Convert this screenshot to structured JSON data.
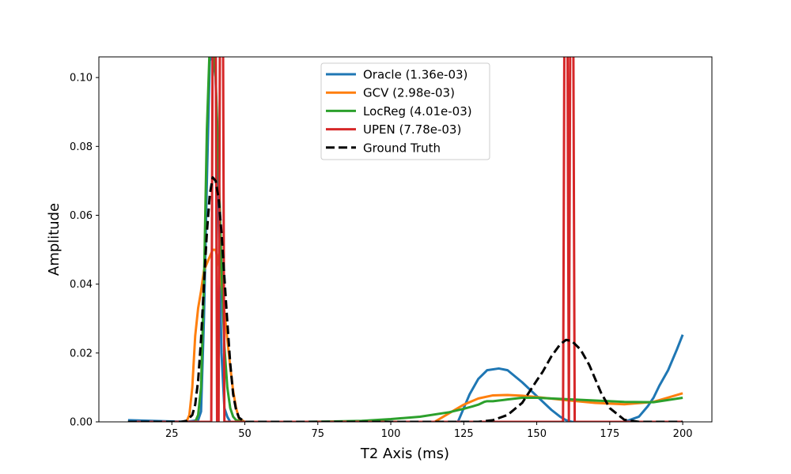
{
  "chart_data": {
    "type": "line",
    "title": "",
    "xlabel": "T2 Axis (ms)",
    "ylabel": "Amplitude",
    "xlim": [
      0,
      210
    ],
    "ylim": [
      0,
      0.106
    ],
    "x_ticks": [
      25,
      50,
      75,
      100,
      125,
      150,
      175,
      200
    ],
    "x_tick_labels": [
      "25",
      "50",
      "75",
      "100",
      "125",
      "150",
      "175",
      "200"
    ],
    "y_ticks": [
      0.0,
      0.02,
      0.04,
      0.06,
      0.08,
      0.1
    ],
    "y_tick_labels": [
      "0.00",
      "0.02",
      "0.04",
      "0.06",
      "0.08",
      "0.10"
    ],
    "grid": false,
    "legend_position": "top-center",
    "series": [
      {
        "name": "Oracle (1.36e-03)",
        "color": "#1f77b4",
        "dashed": false,
        "x": [
          10,
          30,
          34,
          35,
          36,
          37,
          38,
          39,
          40,
          41,
          42,
          43,
          44,
          45,
          50,
          120,
          123,
          125,
          127,
          130,
          133,
          137,
          140,
          145,
          150,
          155,
          158,
          160,
          162,
          165,
          180,
          185,
          188,
          190,
          192,
          195,
          198,
          200
        ],
        "y": [
          0.0005,
          0.0,
          0.0005,
          0.003,
          0.03,
          0.07,
          0.105,
          0.106,
          0.1,
          0.06,
          0.02,
          0.004,
          0.0015,
          0.0,
          0.0,
          0.0,
          0.0,
          0.004,
          0.008,
          0.0125,
          0.015,
          0.0155,
          0.015,
          0.0115,
          0.0075,
          0.0035,
          0.0015,
          0.0005,
          0.0,
          0.0,
          0.0,
          0.0015,
          0.0045,
          0.007,
          0.0105,
          0.015,
          0.021,
          0.0253
        ]
      },
      {
        "name": "GCV (2.98e-03)",
        "color": "#ff7f0e",
        "dashed": false,
        "x": [
          10,
          30,
          31,
          32,
          33,
          34,
          35,
          36,
          37,
          38,
          39,
          40,
          41,
          42,
          43,
          44,
          45,
          46,
          47,
          48,
          50,
          115,
          120,
          125,
          130,
          135,
          140,
          145,
          150,
          160,
          170,
          180,
          190,
          200
        ],
        "y": [
          0.0,
          0.0,
          0.002,
          0.01,
          0.025,
          0.033,
          0.038,
          0.044,
          0.046,
          0.048,
          0.05,
          0.05,
          0.046,
          0.04,
          0.032,
          0.024,
          0.016,
          0.009,
          0.004,
          0.001,
          0.0,
          0.0,
          0.0025,
          0.005,
          0.0068,
          0.0077,
          0.0078,
          0.0076,
          0.0072,
          0.0063,
          0.0055,
          0.0051,
          0.0058,
          0.0083
        ]
      },
      {
        "name": "LocReg (4.01e-03)",
        "color": "#2ca02c",
        "dashed": false,
        "x": [
          10,
          33,
          34,
          35,
          36,
          37,
          38,
          39,
          40,
          41,
          42,
          43,
          44,
          45,
          46,
          47,
          50,
          60,
          70,
          80,
          90,
          100,
          110,
          120,
          125,
          128,
          130,
          132,
          133,
          135,
          140,
          145,
          150,
          160,
          170,
          180,
          190,
          200
        ],
        "y": [
          0.0,
          0.0,
          0.002,
          0.01,
          0.04,
          0.085,
          0.11,
          0.11,
          0.1,
          0.075,
          0.045,
          0.022,
          0.01,
          0.004,
          0.0015,
          0.0005,
          0.0,
          0.0,
          0.0,
          0.0001,
          0.0003,
          0.0008,
          0.0015,
          0.0028,
          0.0038,
          0.0045,
          0.005,
          0.0058,
          0.006,
          0.006,
          0.0065,
          0.007,
          0.007,
          0.0066,
          0.0062,
          0.0058,
          0.0057,
          0.007
        ]
      },
      {
        "name": "UPEN (7.78e-03)",
        "color": "#d62728",
        "dashed": false,
        "x": [
          10,
          38.5,
          39,
          40,
          40.5,
          41,
          41.5,
          42.5,
          43,
          158,
          159,
          159.5,
          160.5,
          161,
          161.5,
          162.5,
          163,
          200
        ],
        "y": [
          0.0,
          0.0,
          0.12,
          0.12,
          0.0,
          0.0,
          0.12,
          0.12,
          0.0,
          0.0,
          0.0,
          0.12,
          0.12,
          0.0,
          0.12,
          0.12,
          0.0,
          0.0
        ]
      },
      {
        "name": "Ground Truth",
        "color": "#000000",
        "dashed": true,
        "x": [
          10,
          28,
          30,
          32,
          33,
          34,
          35,
          36,
          37,
          38,
          39,
          40,
          41,
          42,
          43,
          44,
          45,
          46,
          47,
          48,
          50,
          130,
          135,
          140,
          145,
          150,
          152,
          155,
          158,
          160,
          162,
          165,
          168,
          170,
          172,
          175,
          180,
          185,
          190,
          200
        ],
        "y": [
          0.0,
          0.0,
          0.0003,
          0.002,
          0.005,
          0.012,
          0.024,
          0.04,
          0.055,
          0.066,
          0.071,
          0.07,
          0.065,
          0.055,
          0.042,
          0.029,
          0.017,
          0.008,
          0.0035,
          0.0012,
          0.0,
          0.0,
          0.0005,
          0.002,
          0.0055,
          0.012,
          0.0145,
          0.019,
          0.0225,
          0.0238,
          0.0235,
          0.021,
          0.0165,
          0.0125,
          0.0085,
          0.004,
          0.0006,
          0.0,
          0.0,
          0.0
        ]
      }
    ]
  }
}
